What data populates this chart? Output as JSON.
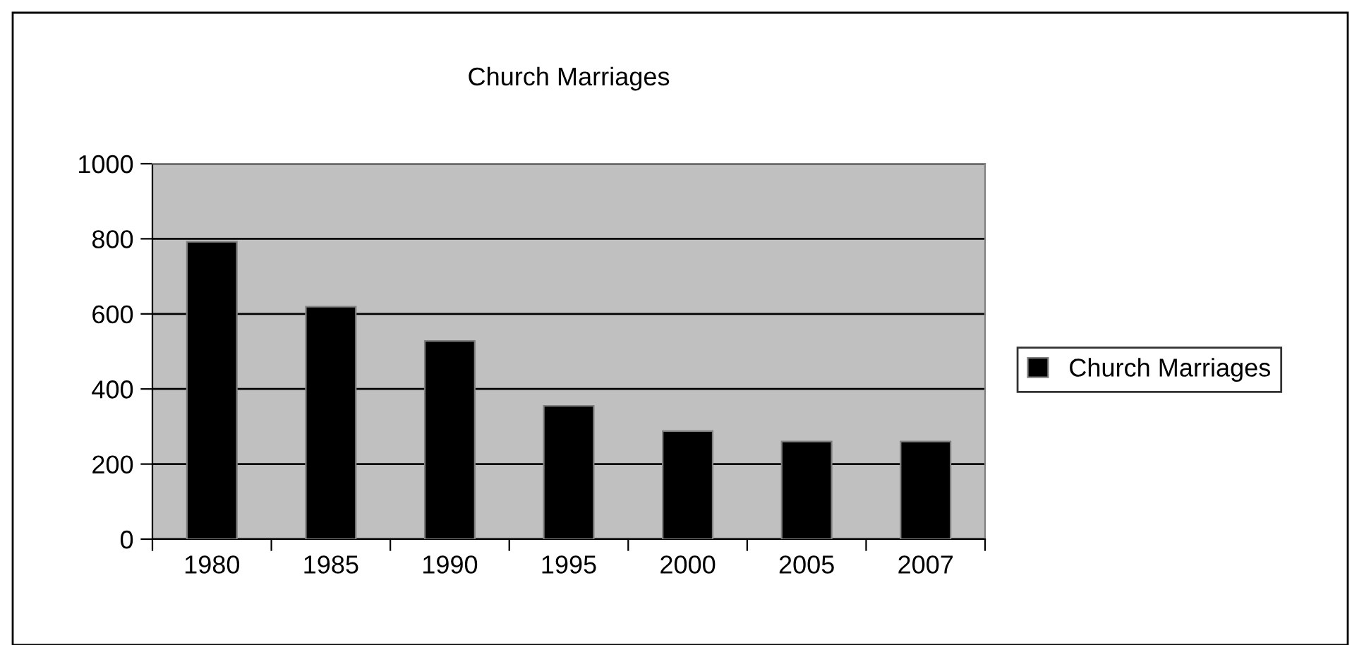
{
  "chart_data": {
    "type": "bar",
    "title": "Church Marriages",
    "categories": [
      "1980",
      "1985",
      "1990",
      "1995",
      "2000",
      "2005",
      "2007"
    ],
    "series": [
      {
        "name": "Church Marriages",
        "color": "#000000",
        "values": [
          792,
          619,
          528,
          355,
          288,
          260,
          260
        ]
      }
    ],
    "ylim": [
      0,
      1000
    ],
    "yticks": [
      0,
      200,
      400,
      600,
      800,
      1000
    ],
    "grid": "y",
    "legend": "right"
  }
}
